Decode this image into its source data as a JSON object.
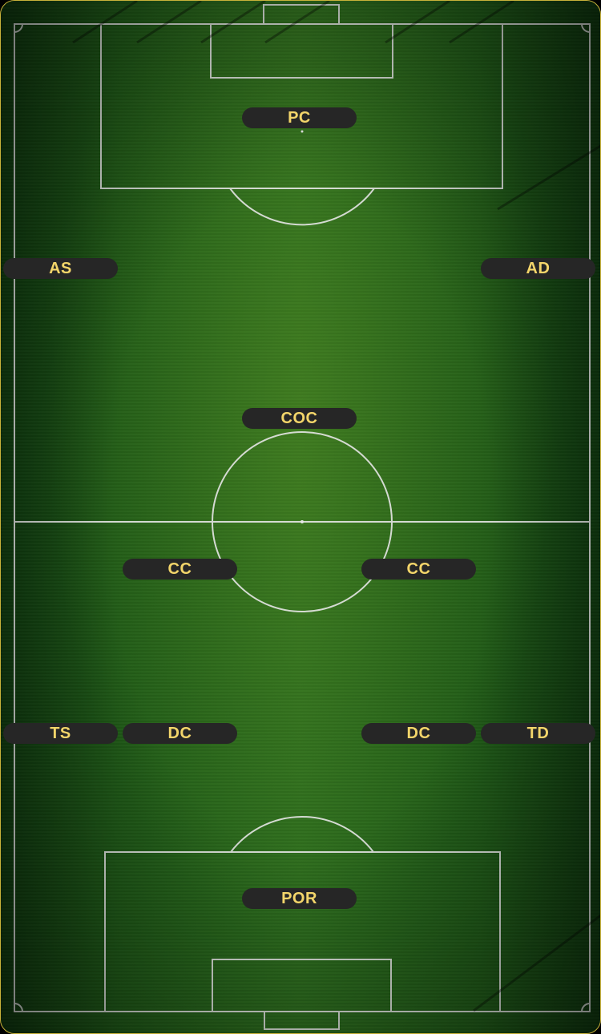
{
  "pitch": {
    "positions": [
      {
        "id": "pc",
        "label": "PC"
      },
      {
        "id": "as",
        "label": "AS"
      },
      {
        "id": "ad",
        "label": "AD"
      },
      {
        "id": "coc",
        "label": "COC"
      },
      {
        "id": "cc-l",
        "label": "CC"
      },
      {
        "id": "cc-r",
        "label": "CC"
      },
      {
        "id": "ts",
        "label": "TS"
      },
      {
        "id": "dc-l",
        "label": "DC"
      },
      {
        "id": "dc-r",
        "label": "DC"
      },
      {
        "id": "td",
        "label": "TD"
      },
      {
        "id": "por",
        "label": "POR"
      }
    ]
  },
  "colors": {
    "chip_background": "#262626",
    "chip_text": "#f3d56a",
    "frame_border": "#c9b23a",
    "pitch_lines": "#e8e8e8"
  }
}
